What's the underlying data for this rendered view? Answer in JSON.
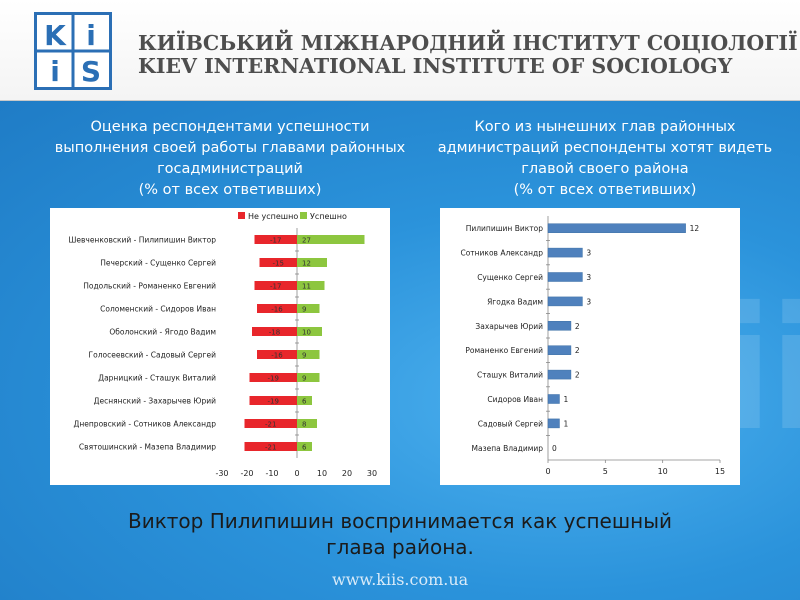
{
  "header": {
    "title_ua": "КИЇВСЬКИЙ МІЖНАРОДНИЙ ІНСТИТУТ СОЦІОЛОГІЇ",
    "title_en": "KIEV INTERNATIONAL  INSTITUTE OF SOCIOLOGY",
    "logo_letters": [
      "K",
      "i",
      "i",
      "S"
    ]
  },
  "left_panel": {
    "title_lines": [
      "Оценка респондентами успешности",
      "выполнения своей работы главами районных",
      "госадминистраций",
      "(% от всех ответивших)"
    ]
  },
  "right_panel": {
    "title_lines": [
      "Кого из нынешних глав районных",
      "администраций респонденты хотят видеть",
      "главой своего района",
      "(% от всех ответивших)"
    ]
  },
  "conclusion_lines": [
    "Виктор Пилипишин воспринимается как успешный",
    "глава района."
  ],
  "website": "www.kiis.com.ua",
  "colors": {
    "negative": "#e8262b",
    "positive": "#8dc63f",
    "bar": "#4f81bd"
  },
  "chart_data": [
    {
      "type": "bar",
      "orientation": "horizontal",
      "stacked": "diverging",
      "categories": [
        "Шевченковский - Пилипишин Виктор",
        "Печерский - Сущенко Сергей",
        "Подольский - Романенко Евгений",
        "Соломенский - Сидоров Иван",
        "Оболонский - Ягодо Вадим",
        "Голосеевский - Садовый Сергей",
        "Дарницкий - Сташук Виталий",
        "Деснянский - Захарычев Юрий",
        "Днепровский - Сотников Александр",
        "Святошинский - Мазепа Владимир"
      ],
      "series": [
        {
          "name": "Не успешно",
          "values": [
            -17,
            -15,
            -17,
            -16,
            -18,
            -16,
            -19,
            -19,
            -21,
            -21
          ]
        },
        {
          "name": "Успешно",
          "values": [
            27,
            12,
            11,
            9,
            10,
            9,
            9,
            6,
            8,
            6
          ]
        }
      ],
      "xlim": [
        -30,
        30
      ],
      "xticks": [
        "-30",
        "-20",
        "-10",
        "0",
        "10",
        "20",
        "30"
      ],
      "legend": "top"
    },
    {
      "type": "bar",
      "orientation": "horizontal",
      "categories": [
        "Пилипишин Виктор",
        "Сотников Александр",
        "Сущенко Сергей",
        "Ягодка Вадим",
        "Захарычев Юрий",
        "Романенко Евгений",
        "Сташук Виталий",
        "Сидоров Иван",
        "Садовый Сергей",
        "Мазепа Владимир"
      ],
      "values": [
        12,
        3,
        3,
        3,
        2,
        2,
        2,
        1,
        1,
        0
      ],
      "xlim": [
        0,
        15
      ],
      "xticks": [
        "0",
        "5",
        "10",
        "15"
      ]
    }
  ]
}
